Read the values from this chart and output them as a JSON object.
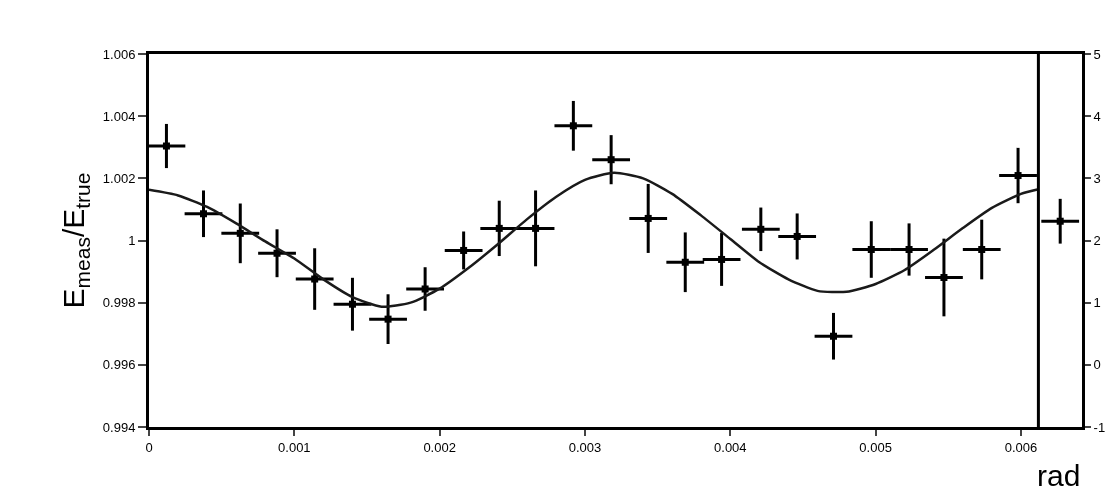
{
  "chart_data": {
    "type": "scatter",
    "xlabel": "rad",
    "ylabel": "E$_{meas}$/E$_{true}$",
    "xlim": [
      0,
      0.00642
    ],
    "ylim": [
      0.994,
      1.006
    ],
    "xticks": [
      0,
      0.001,
      0.002,
      0.003,
      0.004,
      0.005,
      0.006
    ],
    "yticks": [
      0.994,
      0.996,
      0.998,
      1,
      1.002,
      1.004,
      1.006
    ],
    "y2lim": [
      -1,
      5
    ],
    "y2ticks": [
      -1,
      0,
      1,
      2,
      3,
      4,
      5
    ],
    "legend": false,
    "ref_lines": [
      {
        "axis": "x",
        "value": 0.00612,
        "color": "#000000"
      }
    ],
    "series": [
      {
        "color": "#000000",
        "marker": "square",
        "x": [
          0.00012,
          0.000375,
          0.000628,
          0.000881,
          0.00114,
          0.0014,
          0.001645,
          0.0019,
          0.002165,
          0.00241,
          0.00266,
          0.00292,
          0.00318,
          0.003435,
          0.00369,
          0.00394,
          0.00421,
          0.00446,
          0.00471,
          0.00497,
          0.00523,
          0.00547,
          0.00573,
          0.00598,
          0.00627
        ],
        "values": [
          1.00304,
          1.00086,
          1.00023,
          0.99959,
          0.99876,
          0.99795,
          0.99747,
          0.99844,
          0.99968,
          1.00039,
          1.00039,
          1.00369,
          1.0026,
          1.00071,
          0.9993,
          0.99939,
          1.00036,
          1.00013,
          0.99692,
          0.99971,
          0.99971,
          0.99881,
          0.99971,
          1.00209,
          1.00062
        ],
        "errors": [
          0.00071,
          0.00075,
          0.00096,
          0.00077,
          0.00099,
          0.00085,
          0.0008,
          0.0007,
          0.00061,
          0.00089,
          0.00122,
          0.0008,
          0.00079,
          0.00111,
          0.00096,
          0.00085,
          0.0007,
          0.00074,
          0.00075,
          0.00091,
          0.00084,
          0.00125,
          0.00096,
          0.00089,
          0.00072
        ],
        "xerrors": [
          0.00013,
          0.00013,
          0.00013,
          0.00013,
          0.00013,
          0.00013,
          0.00013,
          0.00013,
          0.00013,
          0.00013,
          0.00013,
          0.00013,
          0.00013,
          0.00013,
          0.00013,
          0.00013,
          0.00013,
          0.00013,
          0.00013,
          0.00013,
          0.00013,
          0.00013,
          0.00013,
          0.00013,
          0.00013
        ]
      },
      {
        "type": "line",
        "color": "#1a1a1a",
        "line_style": "solid",
        "x": [
          0,
          0.0002,
          0.0004,
          0.0006,
          0.0008,
          0.001,
          0.0012,
          0.0014,
          0.0016,
          0.0018,
          0.002,
          0.0022,
          0.0024,
          0.0026,
          0.0028,
          0.003,
          0.0032,
          0.0034,
          0.0036,
          0.0038,
          0.004,
          0.0042,
          0.0044,
          0.0046,
          0.0048,
          0.005,
          0.0052,
          0.0054,
          0.0056,
          0.0058,
          0.006,
          0.00612
        ],
        "values": [
          1.00163,
          1.00145,
          1.00108,
          1.00055,
          0.99997,
          0.99942,
          0.99875,
          0.99818,
          0.99787,
          0.998,
          0.99845,
          0.99912,
          0.99988,
          1.00068,
          1.0014,
          1.00195,
          1.00218,
          1.002,
          1.0015,
          1.0008,
          1.00005,
          0.9993,
          0.99875,
          0.99838,
          0.99835,
          0.9986,
          0.99905,
          0.9997,
          1.0004,
          1.00105,
          1.0015,
          1.00165
        ]
      }
    ]
  }
}
